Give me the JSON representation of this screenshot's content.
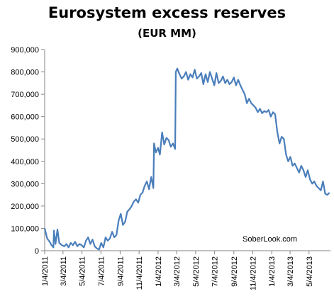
{
  "chart_data": {
    "type": "line",
    "title": "Eurosystem excess reserves",
    "subtitle": "(EUR MM)",
    "xlabel": "",
    "ylabel": "",
    "ylim": [
      0,
      900000
    ],
    "yticks": [
      0,
      100000,
      200000,
      300000,
      400000,
      500000,
      600000,
      700000,
      800000,
      900000
    ],
    "ytick_labels": [
      "0",
      "100,000",
      "200,000",
      "300,000",
      "400,000",
      "500,000",
      "600,000",
      "700,000",
      "800,000",
      "900,000"
    ],
    "xlim": [
      "2011-01-04",
      "2013-07-12"
    ],
    "xtick_labels": [
      "1/4/2011",
      "3/4/2011",
      "5/4/2011",
      "7/4/2011",
      "9/4/2011",
      "11/4/2011",
      "1/4/2012",
      "3/4/2012",
      "5/4/2012",
      "7/4/2012",
      "9/4/2012",
      "11/4/2012",
      "1/4/2013",
      "3/4/2013",
      "5/4/2013"
    ],
    "xtick_dates": [
      "2011-01-04",
      "2011-03-04",
      "2011-05-04",
      "2011-07-04",
      "2011-09-04",
      "2011-11-04",
      "2012-01-04",
      "2012-03-04",
      "2012-05-04",
      "2012-07-04",
      "2012-09-04",
      "2012-11-04",
      "2013-01-04",
      "2013-03-04",
      "2013-05-04"
    ],
    "grid": false,
    "annotation": "SoberLook.com",
    "color": "#4a7ebb",
    "series": [
      {
        "x": [
          "2011-01-04",
          "2011-01-12",
          "2011-01-20",
          "2011-01-26",
          "2011-02-01",
          "2011-02-03",
          "2011-02-08",
          "2011-02-14",
          "2011-02-20",
          "2011-02-28",
          "2011-03-08",
          "2011-03-15",
          "2011-03-22",
          "2011-03-29",
          "2011-04-05",
          "2011-04-12",
          "2011-04-19",
          "2011-04-26",
          "2011-05-03",
          "2011-05-10",
          "2011-05-17",
          "2011-05-24",
          "2011-05-31",
          "2011-06-07",
          "2011-06-14",
          "2011-06-21",
          "2011-06-28",
          "2011-07-05",
          "2011-07-12",
          "2011-07-19",
          "2011-07-26",
          "2011-08-02",
          "2011-08-09",
          "2011-08-16",
          "2011-08-23",
          "2011-08-30",
          "2011-09-06",
          "2011-09-13",
          "2011-09-20",
          "2011-09-27",
          "2011-10-04",
          "2011-10-11",
          "2011-10-18",
          "2011-10-25",
          "2011-11-01",
          "2011-11-08",
          "2011-11-15",
          "2011-11-22",
          "2011-11-29",
          "2011-12-06",
          "2011-12-13",
          "2011-12-20",
          "2011-12-22",
          "2011-12-28",
          "2012-01-04",
          "2012-01-10",
          "2012-01-17",
          "2012-01-24",
          "2012-01-31",
          "2012-02-07",
          "2012-02-14",
          "2012-02-21",
          "2012-02-28",
          "2012-03-01",
          "2012-03-06",
          "2012-03-13",
          "2012-03-20",
          "2012-03-27",
          "2012-04-03",
          "2012-04-10",
          "2012-04-17",
          "2012-04-24",
          "2012-05-01",
          "2012-05-08",
          "2012-05-15",
          "2012-05-22",
          "2012-05-29",
          "2012-06-05",
          "2012-06-12",
          "2012-06-19",
          "2012-06-26",
          "2012-07-03",
          "2012-07-10",
          "2012-07-17",
          "2012-07-24",
          "2012-07-31",
          "2012-08-07",
          "2012-08-14",
          "2012-08-21",
          "2012-08-28",
          "2012-09-04",
          "2012-09-11",
          "2012-09-18",
          "2012-09-25",
          "2012-10-02",
          "2012-10-09",
          "2012-10-16",
          "2012-10-23",
          "2012-10-30",
          "2012-11-06",
          "2012-11-13",
          "2012-11-20",
          "2012-11-27",
          "2012-12-04",
          "2012-12-11",
          "2012-12-18",
          "2012-12-25",
          "2013-01-01",
          "2013-01-08",
          "2013-01-15",
          "2013-01-22",
          "2013-01-29",
          "2013-02-05",
          "2013-02-12",
          "2013-02-19",
          "2013-02-26",
          "2013-03-05",
          "2013-03-12",
          "2013-03-19",
          "2013-03-26",
          "2013-04-02",
          "2013-04-09",
          "2013-04-16",
          "2013-04-23",
          "2013-04-30",
          "2013-05-07",
          "2013-05-14",
          "2013-05-21",
          "2013-05-28",
          "2013-06-04",
          "2013-06-11",
          "2013-06-18",
          "2013-06-25",
          "2013-07-02",
          "2013-07-09"
        ],
        "y": [
          100000,
          55000,
          40000,
          25000,
          15000,
          90000,
          30000,
          95000,
          35000,
          25000,
          20000,
          30000,
          15000,
          35000,
          25000,
          40000,
          20000,
          30000,
          25000,
          15000,
          45000,
          60000,
          30000,
          50000,
          20000,
          10000,
          5000,
          35000,
          15000,
          60000,
          45000,
          55000,
          85000,
          60000,
          70000,
          135000,
          165000,
          115000,
          130000,
          175000,
          185000,
          200000,
          220000,
          230000,
          215000,
          250000,
          260000,
          290000,
          310000,
          275000,
          330000,
          280000,
          480000,
          440000,
          460000,
          430000,
          530000,
          475000,
          505000,
          495000,
          465000,
          480000,
          455000,
          800000,
          815000,
          790000,
          770000,
          780000,
          800000,
          765000,
          790000,
          775000,
          810000,
          770000,
          780000,
          795000,
          745000,
          790000,
          755000,
          800000,
          770000,
          740000,
          795000,
          750000,
          760000,
          780000,
          750000,
          765000,
          745000,
          755000,
          775000,
          740000,
          765000,
          740000,
          720000,
          700000,
          660000,
          680000,
          660000,
          650000,
          640000,
          620000,
          635000,
          615000,
          625000,
          620000,
          630000,
          600000,
          620000,
          610000,
          530000,
          480000,
          510000,
          500000,
          430000,
          400000,
          420000,
          380000,
          390000,
          370000,
          350000,
          380000,
          360000,
          330000,
          360000,
          320000,
          300000,
          310000,
          290000,
          280000,
          270000,
          310000,
          255000,
          250000,
          260000
        ]
      }
    ]
  }
}
